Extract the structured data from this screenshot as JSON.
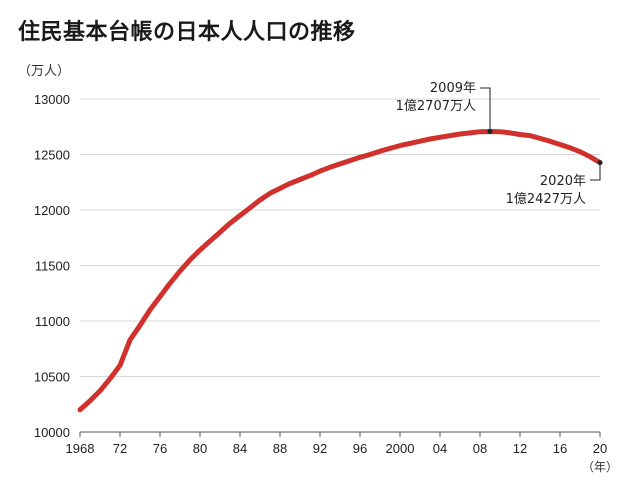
{
  "title": "住民基本台帳の日本人人口の推移",
  "y_unit": "（万人）",
  "x_unit": "（年）",
  "colors": {
    "line": "#d0312d",
    "grid": "#d9d9d9",
    "axis": "#555555"
  },
  "annotations": [
    {
      "year": 2009,
      "line1": "2009年",
      "line2": "1億2707万人"
    },
    {
      "year": 2020,
      "line1": "2020年",
      "line2": "1億2427万人"
    }
  ],
  "chart_data": {
    "type": "line",
    "title": "住民基本台帳の日本人人口の推移",
    "ylabel": "（万人）",
    "xlabel": "（年）",
    "ylim": [
      10000,
      13000
    ],
    "xlim": [
      1968,
      2020
    ],
    "grid": true,
    "yticks": [
      10000,
      10500,
      11000,
      11500,
      12000,
      12500,
      13000
    ],
    "xticks": [
      {
        "year": 1968,
        "label": "1968"
      },
      {
        "year": 1972,
        "label": "72"
      },
      {
        "year": 1976,
        "label": "76"
      },
      {
        "year": 1980,
        "label": "80"
      },
      {
        "year": 1984,
        "label": "84"
      },
      {
        "year": 1988,
        "label": "88"
      },
      {
        "year": 1992,
        "label": "92"
      },
      {
        "year": 1996,
        "label": "96"
      },
      {
        "year": 2000,
        "label": "2000"
      },
      {
        "year": 2004,
        "label": "04"
      },
      {
        "year": 2008,
        "label": "08"
      },
      {
        "year": 2012,
        "label": "12"
      },
      {
        "year": 2016,
        "label": "16"
      },
      {
        "year": 2020,
        "label": "20"
      }
    ],
    "series": [
      {
        "x": [
          1968,
          1969,
          1970,
          1971,
          1972,
          1973,
          1974,
          1975,
          1976,
          1977,
          1978,
          1979,
          1980,
          1981,
          1982,
          1983,
          1984,
          1985,
          1986,
          1987,
          1988,
          1989,
          1990,
          1991,
          1992,
          1993,
          1994,
          1995,
          1996,
          1997,
          1998,
          1999,
          2000,
          2001,
          2002,
          2003,
          2004,
          2005,
          2006,
          2007,
          2008,
          2009,
          2010,
          2011,
          2012,
          2013,
          2014,
          2015,
          2016,
          2017,
          2018,
          2019,
          2020
        ],
        "values": [
          10200,
          10280,
          10370,
          10480,
          10600,
          10830,
          10960,
          11100,
          11220,
          11340,
          11450,
          11550,
          11640,
          11720,
          11800,
          11880,
          11950,
          12020,
          12090,
          12150,
          12195,
          12240,
          12275,
          12310,
          12350,
          12385,
          12415,
          12445,
          12475,
          12500,
          12530,
          12555,
          12580,
          12600,
          12620,
          12640,
          12655,
          12670,
          12685,
          12695,
          12705,
          12707,
          12705,
          12695,
          12680,
          12670,
          12645,
          12620,
          12590,
          12560,
          12525,
          12480,
          12427
        ]
      }
    ]
  }
}
